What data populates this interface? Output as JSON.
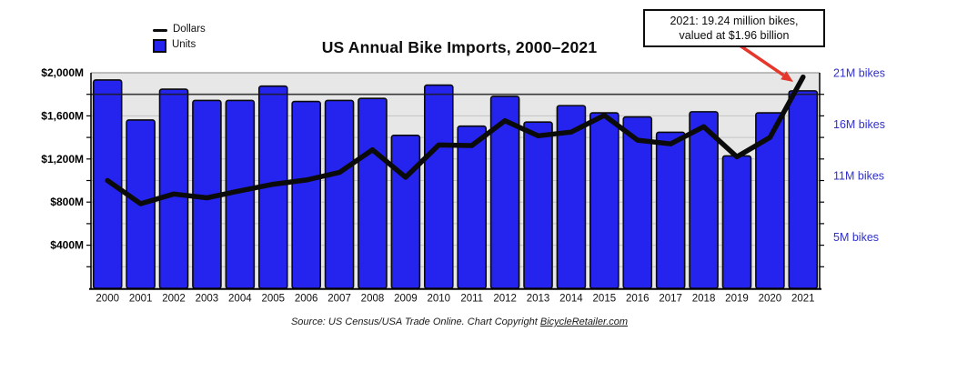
{
  "title": "US Annual Bike Imports, 2000–2021",
  "legend": {
    "dollars_label": "Dollars",
    "units_label": "Units"
  },
  "annotation": {
    "line1": "2021: 19.24 million bikes,",
    "line2": "valued at $1.96 billion"
  },
  "source": {
    "prefix": "Source: US Census/USA Trade Online. Chart Copyright ",
    "link": "BicycleRetailer.com"
  },
  "colors": {
    "bar_fill": "#2424ee",
    "bar_border": "#0a0a0a",
    "dollars_line": "#0b0b0b",
    "right_axis_text": "#3030cc",
    "left_axis_text": "#000000",
    "arrow_red": "#e5372b",
    "plot_bg": "#e7e7e7",
    "gridline": "#c4c4c4",
    "dark_gridline": "#1a1a1a",
    "axis_line": "#000000"
  },
  "chart_data": {
    "type": "bar+line",
    "title": "US Annual Bike Imports, 2000–2021",
    "categories": [
      "2000",
      "2001",
      "2002",
      "2003",
      "2004",
      "2005",
      "2006",
      "2007",
      "2008",
      "2009",
      "2010",
      "2011",
      "2012",
      "2013",
      "2014",
      "2015",
      "2016",
      "2017",
      "2018",
      "2019",
      "2020",
      "2021"
    ],
    "series": [
      {
        "name": "Units",
        "type": "bar",
        "axis": "right",
        "unit": "million bikes",
        "values": [
          20.3,
          16.4,
          19.4,
          18.3,
          18.3,
          19.7,
          18.2,
          18.3,
          18.5,
          14.9,
          19.8,
          15.8,
          18.7,
          16.2,
          17.8,
          17.1,
          16.7,
          15.2,
          17.2,
          12.9,
          17.1,
          19.24
        ]
      },
      {
        "name": "Dollars",
        "type": "line",
        "axis": "left",
        "unit": "$ millions",
        "values": [
          1000,
          785,
          875,
          840,
          905,
          965,
          1005,
          1075,
          1285,
          1030,
          1330,
          1325,
          1555,
          1415,
          1450,
          1605,
          1375,
          1340,
          1500,
          1220,
          1400,
          1960
        ]
      }
    ],
    "left_axis": {
      "range": [
        0,
        2000
      ],
      "minor_step": 200,
      "major_ticks": [
        {
          "label": "$2,000M",
          "value": 2000
        },
        {
          "label": "$1,600M",
          "value": 1600
        },
        {
          "label": "$1,200M",
          "value": 1200
        },
        {
          "label": "$800M",
          "value": 800
        },
        {
          "label": "$400M",
          "value": 400
        }
      ]
    },
    "right_axis": {
      "range": [
        0,
        21
      ],
      "ticks": [
        {
          "label": "21M bikes",
          "value": 21
        },
        {
          "label": "16M bikes",
          "value": 16
        },
        {
          "label": "11M bikes",
          "value": 11
        },
        {
          "label": "5M bikes",
          "value": 5
        }
      ]
    },
    "gridlines": true,
    "legend_position": "top-left",
    "annotation_points_to": {
      "category": "2021",
      "series": "Dollars"
    }
  }
}
